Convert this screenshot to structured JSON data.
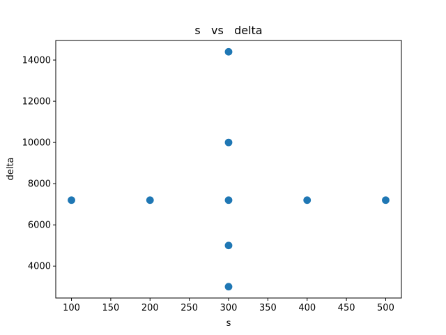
{
  "chart_data": {
    "type": "scatter",
    "title": "s   vs   delta",
    "xlabel": "s",
    "ylabel": "delta",
    "xlim": [
      80,
      520
    ],
    "ylim": [
      2450,
      14950
    ],
    "xticks": [
      100,
      150,
      200,
      250,
      300,
      350,
      400,
      450,
      500
    ],
    "yticks": [
      4000,
      6000,
      8000,
      10000,
      12000,
      14000
    ],
    "grid": false,
    "legend": "none",
    "marker_color": "#1f77b4",
    "points": [
      {
        "x": 100,
        "y": 7200
      },
      {
        "x": 200,
        "y": 7200
      },
      {
        "x": 300,
        "y": 7200
      },
      {
        "x": 400,
        "y": 7200
      },
      {
        "x": 500,
        "y": 7200
      },
      {
        "x": 300,
        "y": 3000
      },
      {
        "x": 300,
        "y": 5000
      },
      {
        "x": 300,
        "y": 10000
      },
      {
        "x": 300,
        "y": 14400
      }
    ]
  }
}
